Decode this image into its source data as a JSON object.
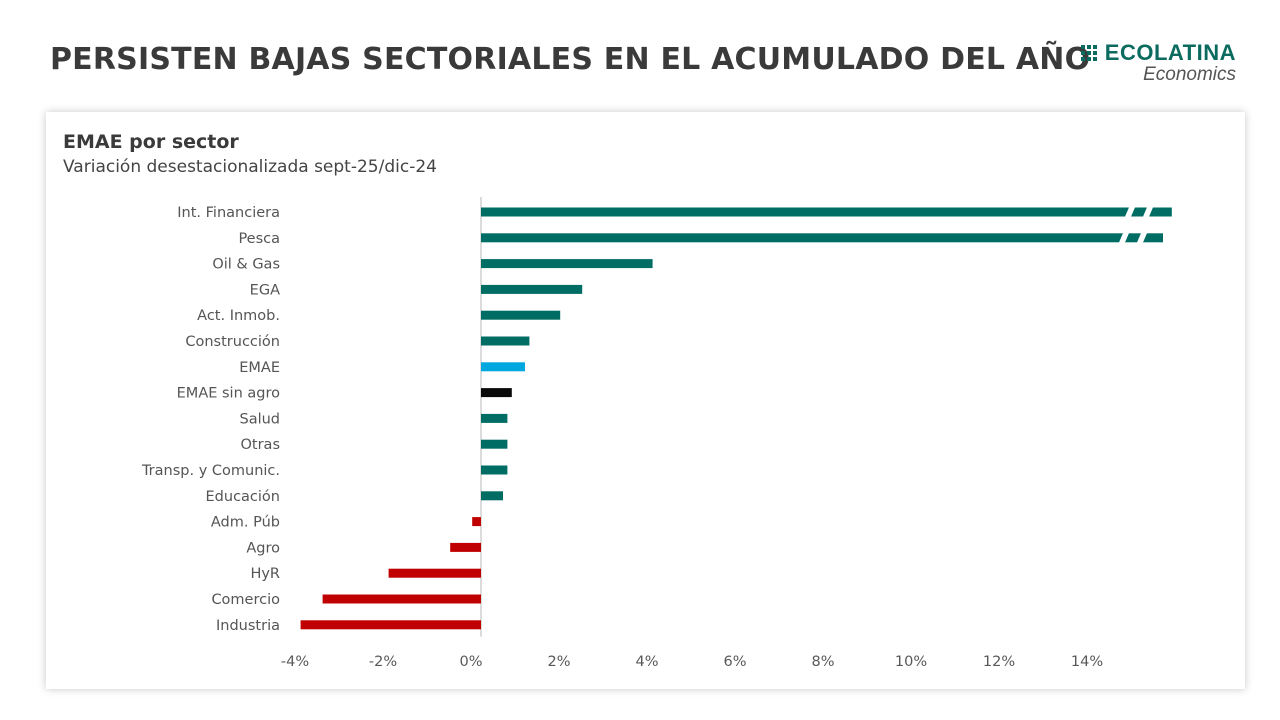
{
  "page": {
    "title": "PERSISTEN BAJAS SECTORIALES EN EL ACUMULADO DEL AÑO",
    "logo": {
      "name": "ECOLATINA",
      "subtitle": "Economics",
      "icon": "grid-dots-icon",
      "color": "#0b6b5e"
    }
  },
  "chart_data": {
    "type": "bar",
    "orientation": "horizontal",
    "title": "EMAE por sector",
    "subtitle": "Variación desestacionalizada sept-25/dic-24",
    "xlabel": "",
    "ylabel": "",
    "xlim": [
      -4,
      15.7
    ],
    "x_ticks": [
      "-4%",
      "-2%",
      "0%",
      "2%",
      "4%",
      "6%",
      "8%",
      "10%",
      "12%",
      "14%"
    ],
    "x_tick_values": [
      -4,
      -2,
      0,
      2,
      4,
      6,
      8,
      10,
      12,
      14
    ],
    "grid": false,
    "legend": "none",
    "axis_break": {
      "applies_to": [
        "Int. Financiera",
        "Pesca"
      ],
      "note": "bars truncated with break marks"
    },
    "colors": {
      "positive": "#006d65",
      "negative": "#c00000",
      "EMAE": "#00a8e0",
      "EMAE sin agro": "#0a0a0a"
    },
    "categories": [
      "Int. Financiera",
      "Pesca",
      "Oil & Gas",
      "EGA",
      "Act. Inmob.",
      "Construcción",
      "EMAE ",
      "EMAE sin agro",
      "Salud",
      "Otras",
      "Transp. y Comunic. ",
      "Educación",
      "Adm. Púb",
      "Agro",
      "HyR",
      "Comercio",
      "Industria"
    ],
    "values": [
      15.7,
      15.5,
      3.9,
      2.3,
      1.8,
      1.1,
      1.0,
      0.7,
      0.6,
      0.6,
      0.6,
      0.5,
      -0.2,
      -0.7,
      -2.1,
      -3.6,
      -4.1
    ]
  }
}
